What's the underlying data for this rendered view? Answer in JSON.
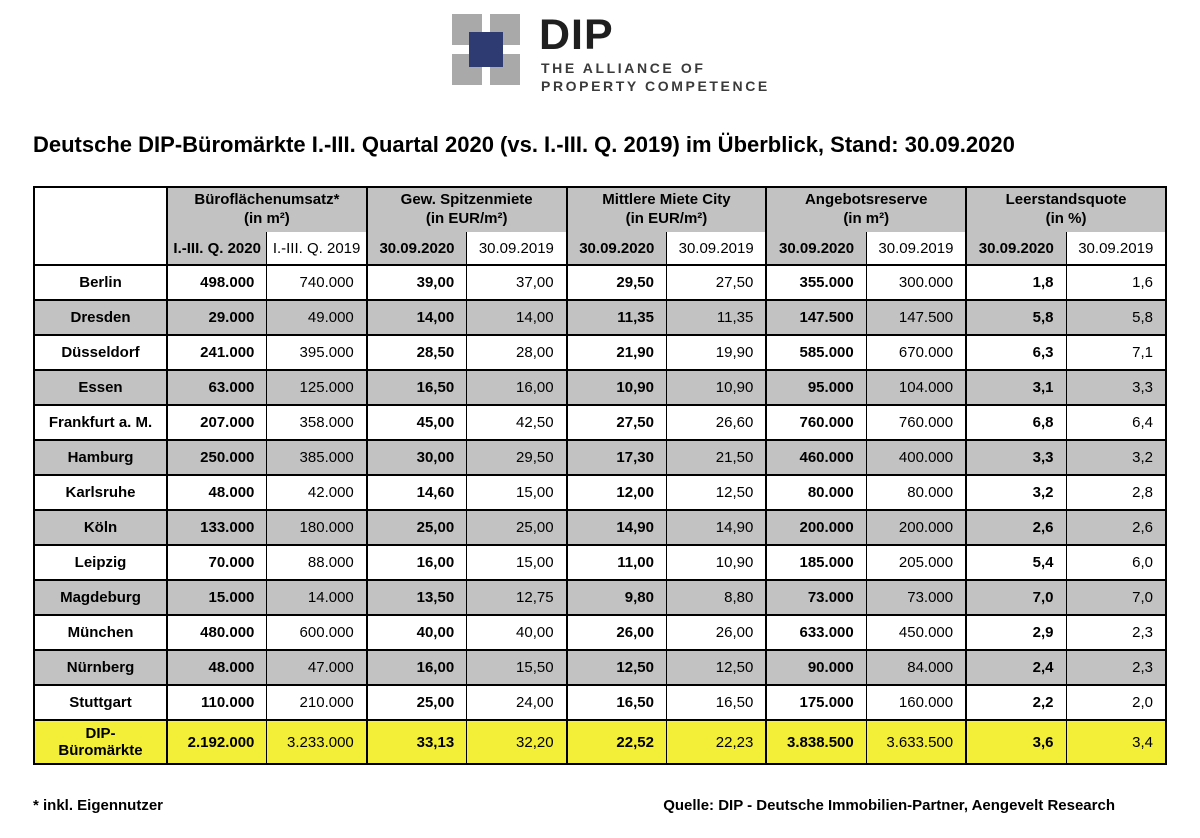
{
  "logo": {
    "name": "DIP",
    "tagline_line1": "THE ALLIANCE OF",
    "tagline_line2": "PROPERTY COMPETENCE"
  },
  "title": "Deutsche DIP-Büromärkte I.-III. Quartal 2020 (vs. I.-III. Q. 2019) im Überblick, Stand: 30.09.2020",
  "table": {
    "groups": [
      {
        "label": "Büroflächenumsatz*",
        "unit": "(in m²)",
        "sub2020": "I.-III. Q. 2020",
        "sub2019": "I.-III. Q. 2019"
      },
      {
        "label": "Gew. Spitzenmiete",
        "unit": "(in EUR/m²)",
        "sub2020": "30.09.2020",
        "sub2019": "30.09.2019"
      },
      {
        "label": "Mittlere Miete City",
        "unit": "(in EUR/m²)",
        "sub2020": "30.09.2020",
        "sub2019": "30.09.2019"
      },
      {
        "label": "Angebotsreserve",
        "unit": "(in m²)",
        "sub2020": "30.09.2020",
        "sub2019": "30.09.2019"
      },
      {
        "label": "Leerstandsquote",
        "unit": "(in %)",
        "sub2020": "30.09.2020",
        "sub2019": "30.09.2019"
      }
    ],
    "rows": [
      {
        "city": "Berlin",
        "values": [
          "498.000",
          "740.000",
          "39,00",
          "37,00",
          "29,50",
          "27,50",
          "355.000",
          "300.000",
          "1,8",
          "1,6"
        ]
      },
      {
        "city": "Dresden",
        "values": [
          "29.000",
          "49.000",
          "14,00",
          "14,00",
          "11,35",
          "11,35",
          "147.500",
          "147.500",
          "5,8",
          "5,8"
        ]
      },
      {
        "city": "Düsseldorf",
        "values": [
          "241.000",
          "395.000",
          "28,50",
          "28,00",
          "21,90",
          "19,90",
          "585.000",
          "670.000",
          "6,3",
          "7,1"
        ]
      },
      {
        "city": "Essen",
        "values": [
          "63.000",
          "125.000",
          "16,50",
          "16,00",
          "10,90",
          "10,90",
          "95.000",
          "104.000",
          "3,1",
          "3,3"
        ]
      },
      {
        "city": "Frankfurt a. M.",
        "values": [
          "207.000",
          "358.000",
          "45,00",
          "42,50",
          "27,50",
          "26,60",
          "760.000",
          "760.000",
          "6,8",
          "6,4"
        ]
      },
      {
        "city": "Hamburg",
        "values": [
          "250.000",
          "385.000",
          "30,00",
          "29,50",
          "17,30",
          "21,50",
          "460.000",
          "400.000",
          "3,3",
          "3,2"
        ]
      },
      {
        "city": "Karlsruhe",
        "values": [
          "48.000",
          "42.000",
          "14,60",
          "15,00",
          "12,00",
          "12,50",
          "80.000",
          "80.000",
          "3,2",
          "2,8"
        ]
      },
      {
        "city": "Köln",
        "values": [
          "133.000",
          "180.000",
          "25,00",
          "25,00",
          "14,90",
          "14,90",
          "200.000",
          "200.000",
          "2,6",
          "2,6"
        ]
      },
      {
        "city": "Leipzig",
        "values": [
          "70.000",
          "88.000",
          "16,00",
          "15,00",
          "11,00",
          "10,90",
          "185.000",
          "205.000",
          "5,4",
          "6,0"
        ]
      },
      {
        "city": "Magdeburg",
        "values": [
          "15.000",
          "14.000",
          "13,50",
          "12,75",
          "9,80",
          "8,80",
          "73.000",
          "73.000",
          "7,0",
          "7,0"
        ]
      },
      {
        "city": "München",
        "values": [
          "480.000",
          "600.000",
          "40,00",
          "40,00",
          "26,00",
          "26,00",
          "633.000",
          "450.000",
          "2,9",
          "2,3"
        ]
      },
      {
        "city": "Nürnberg",
        "values": [
          "48.000",
          "47.000",
          "16,00",
          "15,50",
          "12,50",
          "12,50",
          "90.000",
          "84.000",
          "2,4",
          "2,3"
        ]
      },
      {
        "city": "Stuttgart",
        "values": [
          "110.000",
          "210.000",
          "25,00",
          "24,00",
          "16,50",
          "16,50",
          "175.000",
          "160.000",
          "2,2",
          "2,0"
        ]
      }
    ],
    "total_row": {
      "city": "DIP-\nBüromärkte",
      "values": [
        "2.192.000",
        "3.233.000",
        "33,13",
        "32,20",
        "22,52",
        "22,23",
        "3.838.500",
        "3.633.500",
        "3,6",
        "3,4"
      ]
    }
  },
  "footer": {
    "footnote": "* inkl. Eigennutzer",
    "source": "Quelle: DIP - Deutsche Immobilien-Partner, Aengevelt Research"
  },
  "colors": {
    "row_gray": "#c2c2c2",
    "total_yellow": "#f3ee38",
    "logo_navy": "#2d3b72",
    "logo_gray": "#a9a9a9",
    "border_black": "#000000"
  }
}
